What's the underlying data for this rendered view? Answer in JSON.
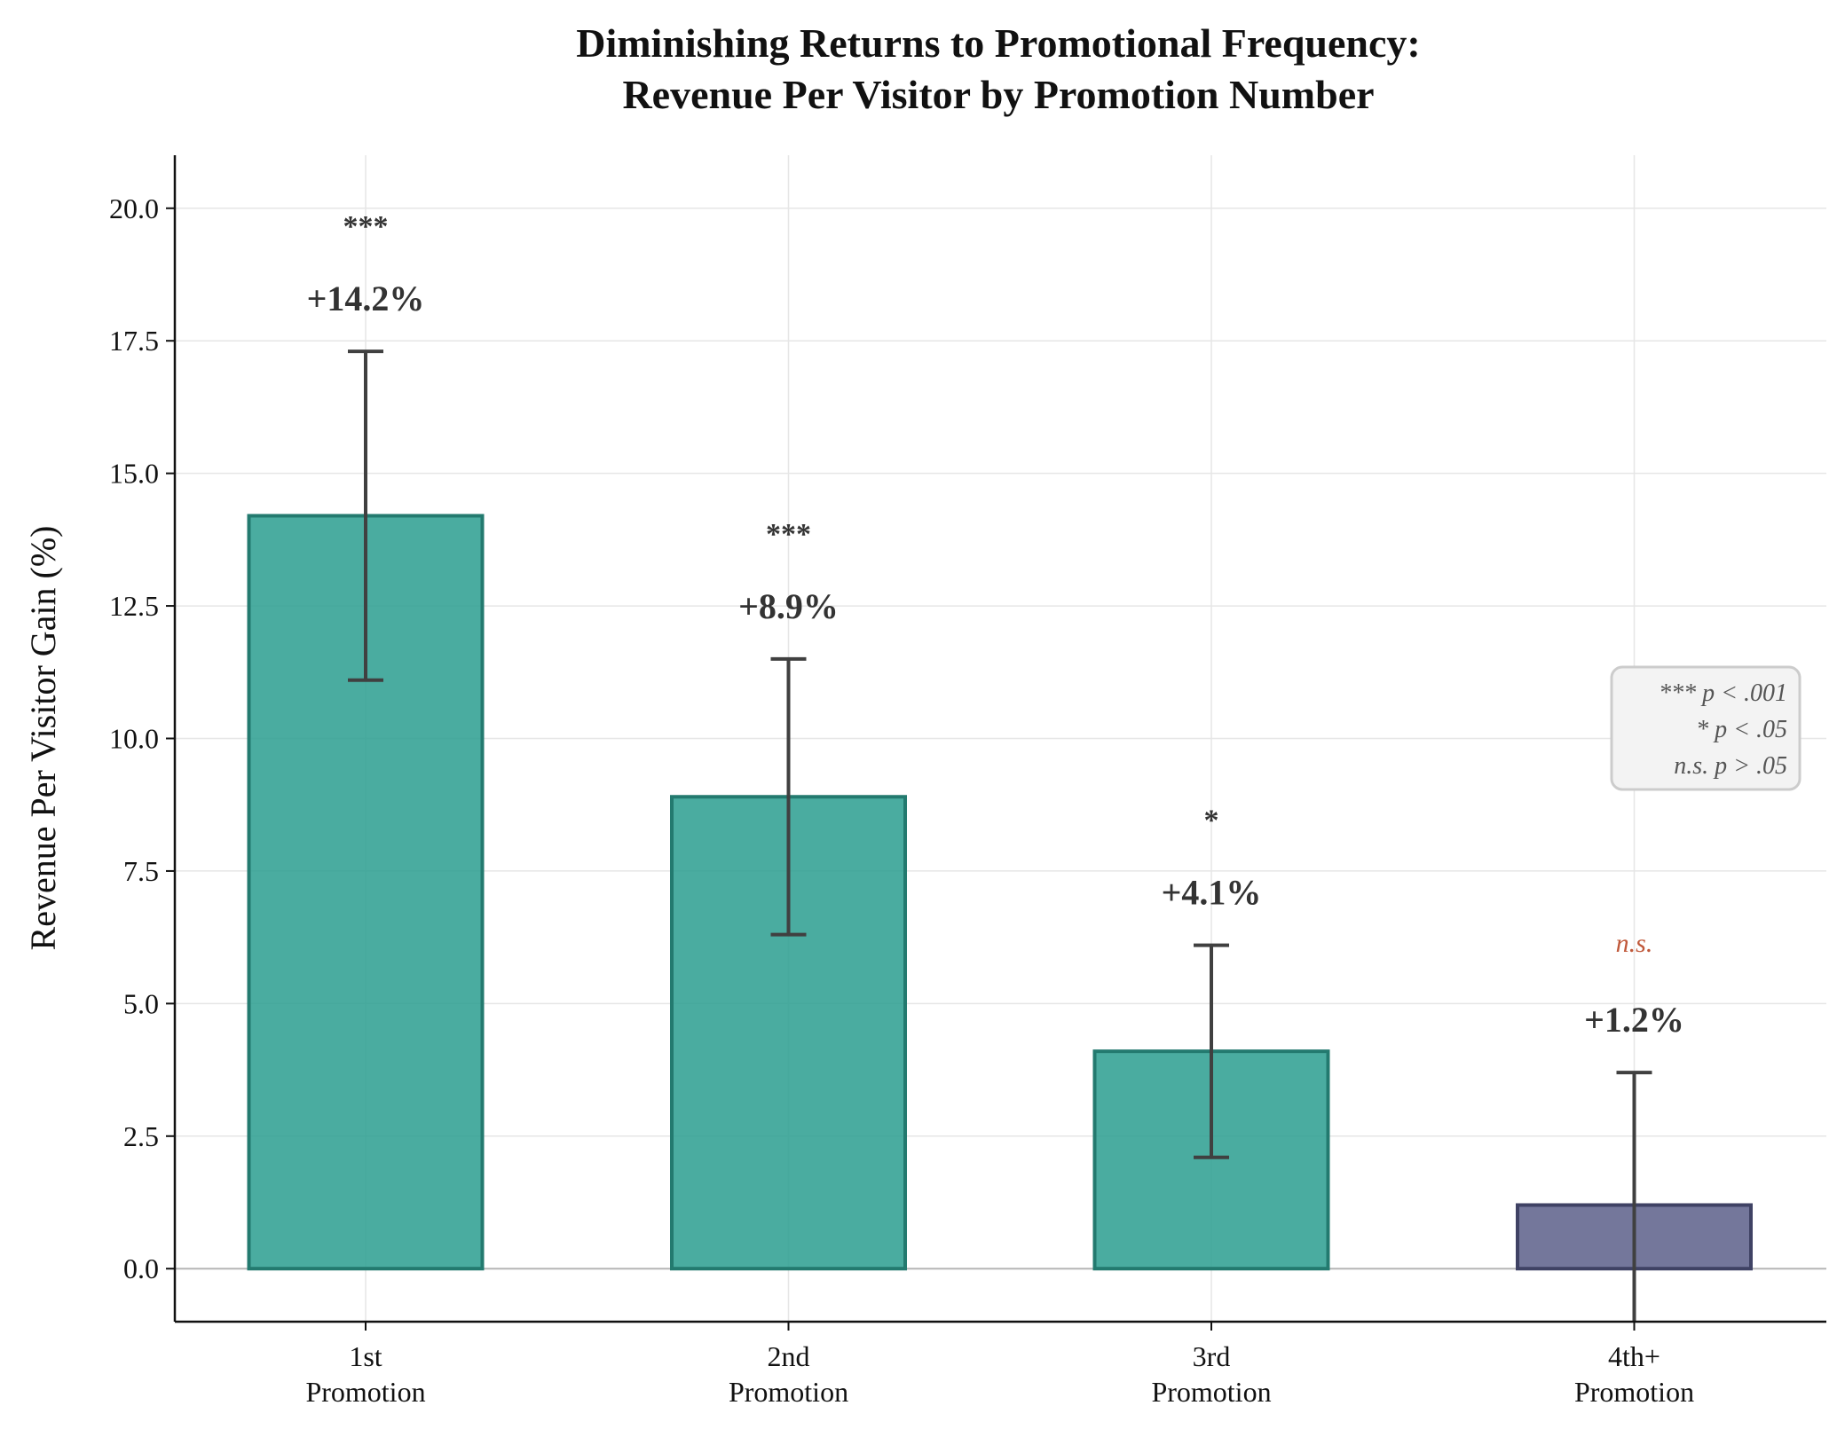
{
  "chart_data": {
    "type": "bar",
    "title": "Diminishing Returns to Promotional Frequency:",
    "subtitle": "Revenue Per Visitor by Promotion Number",
    "xlabel": "",
    "ylabel": "Revenue Per Visitor Gain (%)",
    "ylim": [
      -1,
      21
    ],
    "yticks": [
      0.0,
      2.5,
      5.0,
      7.5,
      10.0,
      12.5,
      15.0,
      17.5,
      20.0
    ],
    "grid": true,
    "categories": [
      {
        "line1": "1st",
        "line2": "Promotion"
      },
      {
        "line1": "2nd",
        "line2": "Promotion"
      },
      {
        "line1": "3rd",
        "line2": "Promotion"
      },
      {
        "line1": "4th+",
        "line2": "Promotion"
      }
    ],
    "values": [
      14.2,
      8.9,
      4.1,
      1.2
    ],
    "error_low": [
      11.1,
      6.3,
      2.1,
      -1.3
    ],
    "error_high": [
      17.3,
      11.5,
      6.1,
      3.7
    ],
    "value_labels": [
      "+14.2%",
      "+8.9%",
      "+4.1%",
      "+1.2%"
    ],
    "significance": [
      "***",
      "***",
      "*",
      "n.s."
    ],
    "significant": [
      true,
      true,
      true,
      false
    ],
    "colors": {
      "significant_fill": "#2a9d8f",
      "significant_edge": "#237a6f",
      "nonsignificant_fill": "#5c5f8a",
      "nonsignificant_edge": "#3f4264",
      "error_bar": "#404040",
      "ns_text": "#c0583a"
    },
    "legend": {
      "placement": "right",
      "lines": [
        {
          "marker": "***",
          "text": "p < .001"
        },
        {
          "marker": "*",
          "text": "p < .05"
        },
        {
          "marker": "n.s.",
          "text": "p > .05"
        }
      ]
    }
  }
}
